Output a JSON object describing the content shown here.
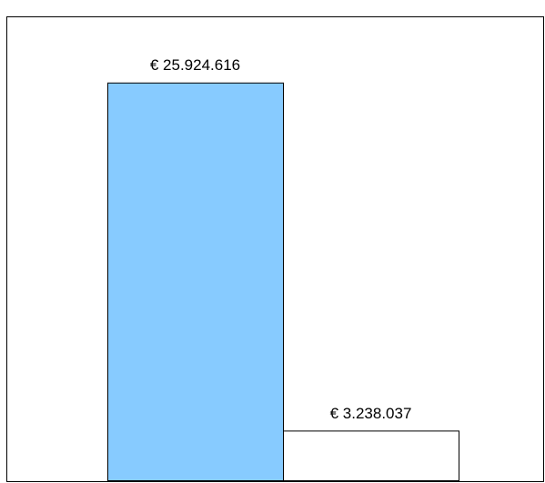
{
  "chart_data": {
    "type": "bar",
    "categories": [
      null,
      null
    ],
    "values": [
      25924616,
      3238037
    ],
    "value_labels": [
      "€ 25.924.616",
      "€ 3.238.037"
    ],
    "colors": [
      "#87cbff",
      "#ffffff"
    ],
    "ylim": [
      0,
      30000000
    ]
  }
}
